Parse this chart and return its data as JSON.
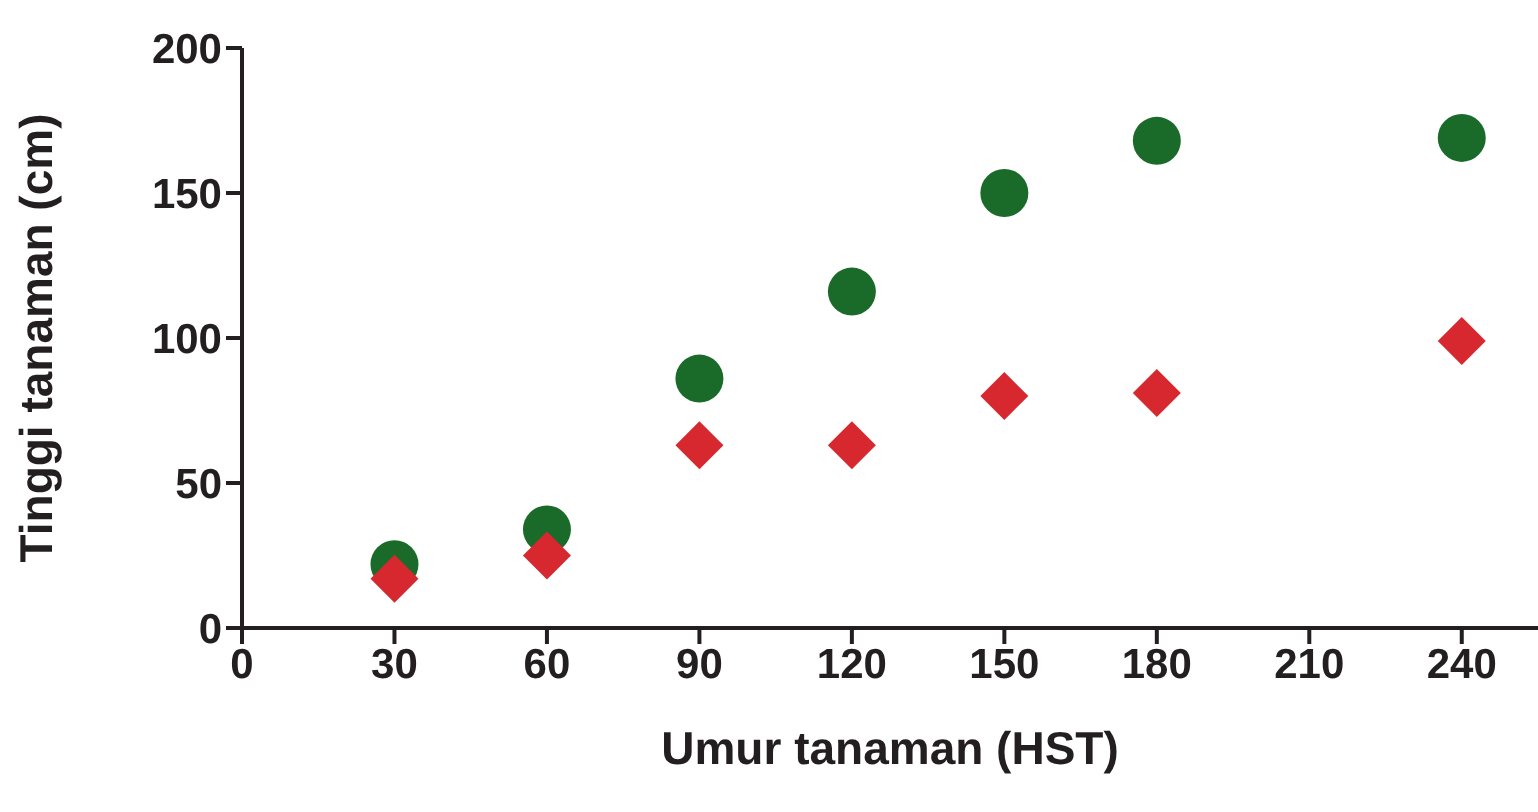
{
  "chart_data": {
    "type": "scatter",
    "xlabel": "Umur tanaman (HST)",
    "ylabel": "Tinggi tanaman (cm)",
    "x": [
      30,
      60,
      90,
      120,
      150,
      180,
      240
    ],
    "series": [
      {
        "color": "#1a6b2a",
        "marker": "circle",
        "values": [
          22,
          34,
          86,
          116,
          150,
          168,
          169
        ]
      },
      {
        "color": "#d7282f",
        "marker": "diamond",
        "values": [
          17,
          25,
          63,
          63,
          80,
          81,
          99
        ]
      }
    ],
    "xlim": [
      0,
      255
    ],
    "xticks": [
      0,
      30,
      60,
      90,
      120,
      150,
      180,
      210,
      240
    ],
    "ylim": [
      0,
      200
    ],
    "yticks": [
      0,
      50,
      100,
      150,
      200
    ],
    "grid": false,
    "legend": false
  }
}
